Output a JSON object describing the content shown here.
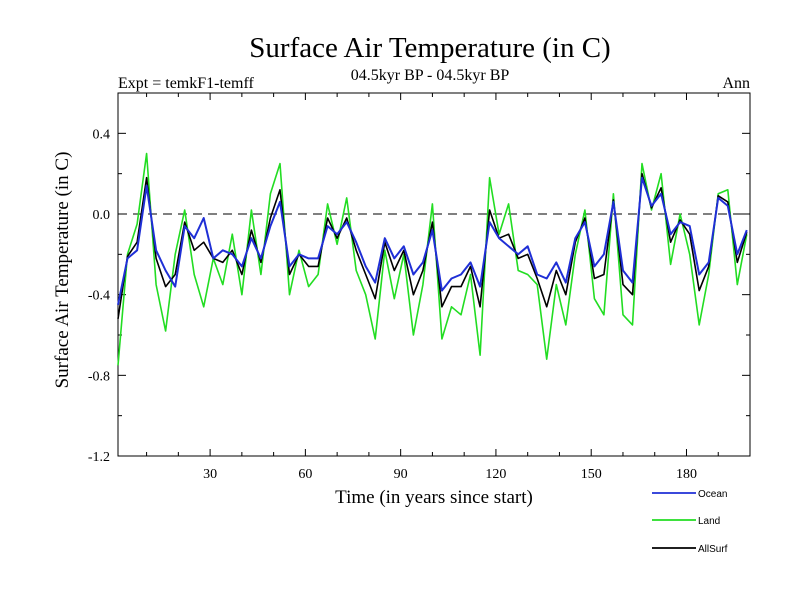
{
  "chart_data": {
    "type": "line",
    "title": "Surface Air Temperature (in C)",
    "subtitle": "04.5kyr BP - 04.5kyr BP",
    "left_label": "Expt = temkF1-temff",
    "right_label": "Ann",
    "xlabel": "Time (in years since start)",
    "ylabel": "Surface Air Temperature (in C)",
    "xlim": [
      1,
      200
    ],
    "ylim": [
      -1.2,
      0.6
    ],
    "xticks": [
      30,
      60,
      90,
      120,
      150,
      180
    ],
    "xtick_labels": [
      "30",
      "60",
      "90",
      "120",
      "150",
      "180"
    ],
    "yticks": [
      -1.2,
      -0.8,
      -0.4,
      0.0,
      0.4
    ],
    "ytick_labels": [
      "-1.2",
      "-0.8",
      "-0.4",
      "0.0",
      "0.4"
    ],
    "reference_line": 0.0,
    "x": [
      1,
      4,
      7,
      10,
      13,
      16,
      19,
      22,
      25,
      28,
      31,
      34,
      37,
      40,
      43,
      46,
      49,
      52,
      55,
      58,
      61,
      64,
      67,
      70,
      73,
      76,
      79,
      82,
      85,
      88,
      91,
      94,
      97,
      100,
      103,
      106,
      109,
      112,
      115,
      118,
      121,
      124,
      127,
      130,
      133,
      136,
      139,
      142,
      145,
      148,
      151,
      154,
      157,
      160,
      163,
      166,
      169,
      172,
      175,
      178,
      181,
      184,
      187,
      190,
      193,
      196,
      199
    ],
    "series": [
      {
        "name": "Ocean",
        "color": "#1f2fd6",
        "values": [
          -0.45,
          -0.22,
          -0.18,
          0.14,
          -0.18,
          -0.28,
          -0.36,
          -0.06,
          -0.12,
          -0.02,
          -0.22,
          -0.18,
          -0.2,
          -0.26,
          -0.12,
          -0.22,
          -0.06,
          0.06,
          -0.26,
          -0.2,
          -0.22,
          -0.22,
          -0.06,
          -0.1,
          -0.04,
          -0.14,
          -0.26,
          -0.34,
          -0.12,
          -0.22,
          -0.16,
          -0.3,
          -0.24,
          -0.08,
          -0.38,
          -0.32,
          -0.3,
          -0.24,
          -0.36,
          -0.04,
          -0.12,
          -0.16,
          -0.2,
          -0.16,
          -0.3,
          -0.32,
          -0.24,
          -0.34,
          -0.12,
          -0.04,
          -0.26,
          -0.2,
          0.06,
          -0.28,
          -0.34,
          0.18,
          0.04,
          0.1,
          -0.1,
          -0.04,
          -0.06,
          -0.3,
          -0.24,
          0.08,
          0.04,
          -0.2,
          -0.08
        ]
      },
      {
        "name": "Land",
        "color": "#22dd22",
        "values": [
          -0.75,
          -0.2,
          -0.05,
          0.3,
          -0.35,
          -0.58,
          -0.2,
          0.02,
          -0.3,
          -0.46,
          -0.22,
          -0.35,
          -0.1,
          -0.4,
          0.02,
          -0.3,
          0.1,
          0.25,
          -0.4,
          -0.18,
          -0.36,
          -0.3,
          0.05,
          -0.15,
          0.08,
          -0.28,
          -0.4,
          -0.62,
          -0.18,
          -0.42,
          -0.2,
          -0.6,
          -0.35,
          0.05,
          -0.62,
          -0.46,
          -0.5,
          -0.3,
          -0.7,
          0.18,
          -0.1,
          0.05,
          -0.28,
          -0.3,
          -0.35,
          -0.72,
          -0.35,
          -0.55,
          -0.2,
          0.02,
          -0.42,
          -0.5,
          0.1,
          -0.5,
          -0.55,
          0.25,
          0.02,
          0.2,
          -0.25,
          0.0,
          -0.2,
          -0.55,
          -0.3,
          0.1,
          0.12,
          -0.35,
          -0.1
        ]
      },
      {
        "name": "AllSurf",
        "color": "#000000",
        "values": [
          -0.52,
          -0.21,
          -0.14,
          0.18,
          -0.22,
          -0.36,
          -0.3,
          -0.04,
          -0.18,
          -0.14,
          -0.22,
          -0.24,
          -0.18,
          -0.3,
          -0.08,
          -0.24,
          -0.02,
          0.12,
          -0.3,
          -0.2,
          -0.26,
          -0.26,
          -0.02,
          -0.12,
          -0.02,
          -0.18,
          -0.3,
          -0.42,
          -0.14,
          -0.28,
          -0.18,
          -0.4,
          -0.28,
          -0.04,
          -0.46,
          -0.36,
          -0.36,
          -0.26,
          -0.46,
          0.02,
          -0.12,
          -0.1,
          -0.22,
          -0.2,
          -0.32,
          -0.46,
          -0.28,
          -0.4,
          -0.14,
          -0.02,
          -0.32,
          -0.3,
          0.07,
          -0.35,
          -0.4,
          0.2,
          0.03,
          0.13,
          -0.14,
          -0.03,
          -0.1,
          -0.38,
          -0.26,
          0.09,
          0.06,
          -0.24,
          -0.09
        ]
      }
    ]
  }
}
